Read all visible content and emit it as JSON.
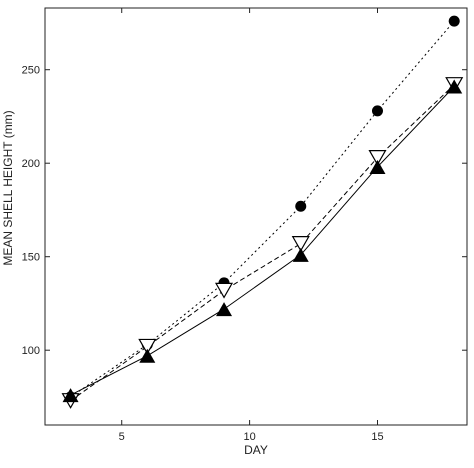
{
  "chart_data": {
    "type": "line",
    "title": "",
    "xlabel": "DAY",
    "ylabel": "MEAN SHELL HEIGHT (mm)",
    "xlim": [
      2,
      18.5
    ],
    "ylim": [
      60,
      283
    ],
    "xticks": [
      5,
      10,
      15
    ],
    "yticks": [
      100,
      150,
      200,
      250
    ],
    "grid": false,
    "legend": "none",
    "x": [
      3,
      6,
      9,
      12,
      15,
      18
    ],
    "series": [
      {
        "marker": "filled-circle",
        "line": "dotted",
        "values": [
          75,
          103,
          136,
          177,
          228,
          276
        ]
      },
      {
        "marker": "open-triangle-down",
        "line": "dashed",
        "values": [
          73,
          102,
          132,
          157,
          203,
          242
        ]
      },
      {
        "marker": "filled-triangle-up",
        "line": "solid",
        "values": [
          76,
          97,
          122,
          151,
          198,
          241
        ]
      }
    ],
    "colors": {
      "axis": "#222222",
      "series": "#000000",
      "background": "#ffffff"
    }
  }
}
